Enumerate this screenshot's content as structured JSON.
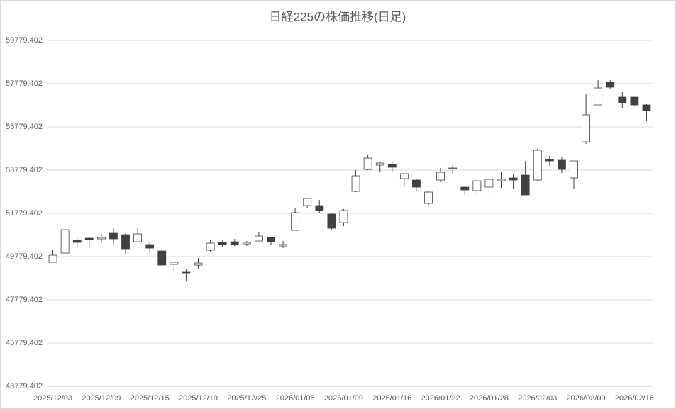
{
  "chart_data": {
    "type": "candlestick",
    "title": "日経225の株価推移(日足)",
    "categories": [
      "2025/12/03",
      null,
      null,
      null,
      "2025/12/09",
      null,
      null,
      null,
      "2025/12/15",
      null,
      null,
      null,
      "2025/12/19",
      null,
      null,
      null,
      "2025/12/25",
      null,
      null,
      null,
      "2026/01/05",
      null,
      null,
      null,
      "2026/01/09",
      null,
      null,
      null,
      "2026/01/16",
      null,
      null,
      null,
      "2026/01/22",
      null,
      null,
      null,
      "2026/01/28",
      null,
      null,
      null,
      "2026/02/03",
      null,
      null,
      null,
      "2026/02/09",
      null,
      null,
      null,
      "2026/02/16",
      null
    ],
    "open": [
      49516,
      49942,
      50532,
      50631,
      50598,
      50860,
      50795,
      50467,
      50336,
      50040,
      49418,
      49057,
      49385,
      50073,
      50434,
      50467,
      50368,
      50499,
      50663,
      50270,
      50991,
      52139,
      52139,
      51745,
      51352,
      52795,
      53811,
      54008,
      54041,
      53385,
      53320,
      52238,
      53320,
      53844,
      52992,
      52828,
      52992,
      53287,
      53418,
      53549,
      53320,
      54270,
      54238,
      53418,
      55090,
      56795,
      57844,
      57156,
      57156,
      56795
    ],
    "high": [
      50106,
      51024,
      50631,
      50663,
      50827,
      51090,
      50860,
      51122,
      50434,
      50040,
      49516,
      49188,
      49713,
      50532,
      50532,
      50598,
      50499,
      50926,
      50663,
      50499,
      52008,
      52467,
      52401,
      51811,
      51975,
      53779,
      54467,
      54139,
      54139,
      53615,
      53385,
      52828,
      53877,
      54008,
      53057,
      53287,
      53451,
      53713,
      53615,
      54205,
      54762,
      54434,
      54401,
      54205,
      57320,
      57943,
      57943,
      57386,
      57156,
      56828
    ],
    "low": [
      49516,
      49942,
      50237,
      50204,
      50401,
      50302,
      49909,
      50467,
      49942,
      49352,
      49024,
      48631,
      49188,
      50008,
      50237,
      50270,
      50270,
      50499,
      50336,
      50172,
      50991,
      52041,
      51811,
      51024,
      51188,
      52762,
      53779,
      53680,
      53680,
      53057,
      52828,
      52172,
      53221,
      53582,
      52631,
      52697,
      52729,
      52959,
      52893,
      52631,
      53254,
      53975,
      53648,
      52926,
      54992,
      56795,
      57516,
      56664,
      56730,
      56074
    ],
    "close": [
      49844,
      51024,
      50434,
      50565,
      50663,
      50598,
      50139,
      50827,
      50172,
      49385,
      49516,
      49024,
      49483,
      50401,
      50336,
      50336,
      50434,
      50729,
      50467,
      50336,
      51811,
      52467,
      51909,
      51090,
      51909,
      53516,
      54336,
      54106,
      53910,
      53615,
      52992,
      52762,
      53680,
      53877,
      52861,
      53287,
      53352,
      53352,
      53320,
      52631,
      54697,
      54205,
      53811,
      54205,
      56336,
      57582,
      57615,
      56894,
      56795,
      56533
    ],
    "up_color": "#ffffff",
    "down_color": "#404040",
    "ylim": [
      43779.402,
      60779.402
    ],
    "yticks": [
      43779.402,
      45779.402,
      47779.402,
      49779.402,
      51779.402,
      53779.402,
      55779.402,
      57779.402,
      59779.402
    ],
    "grid": true
  }
}
